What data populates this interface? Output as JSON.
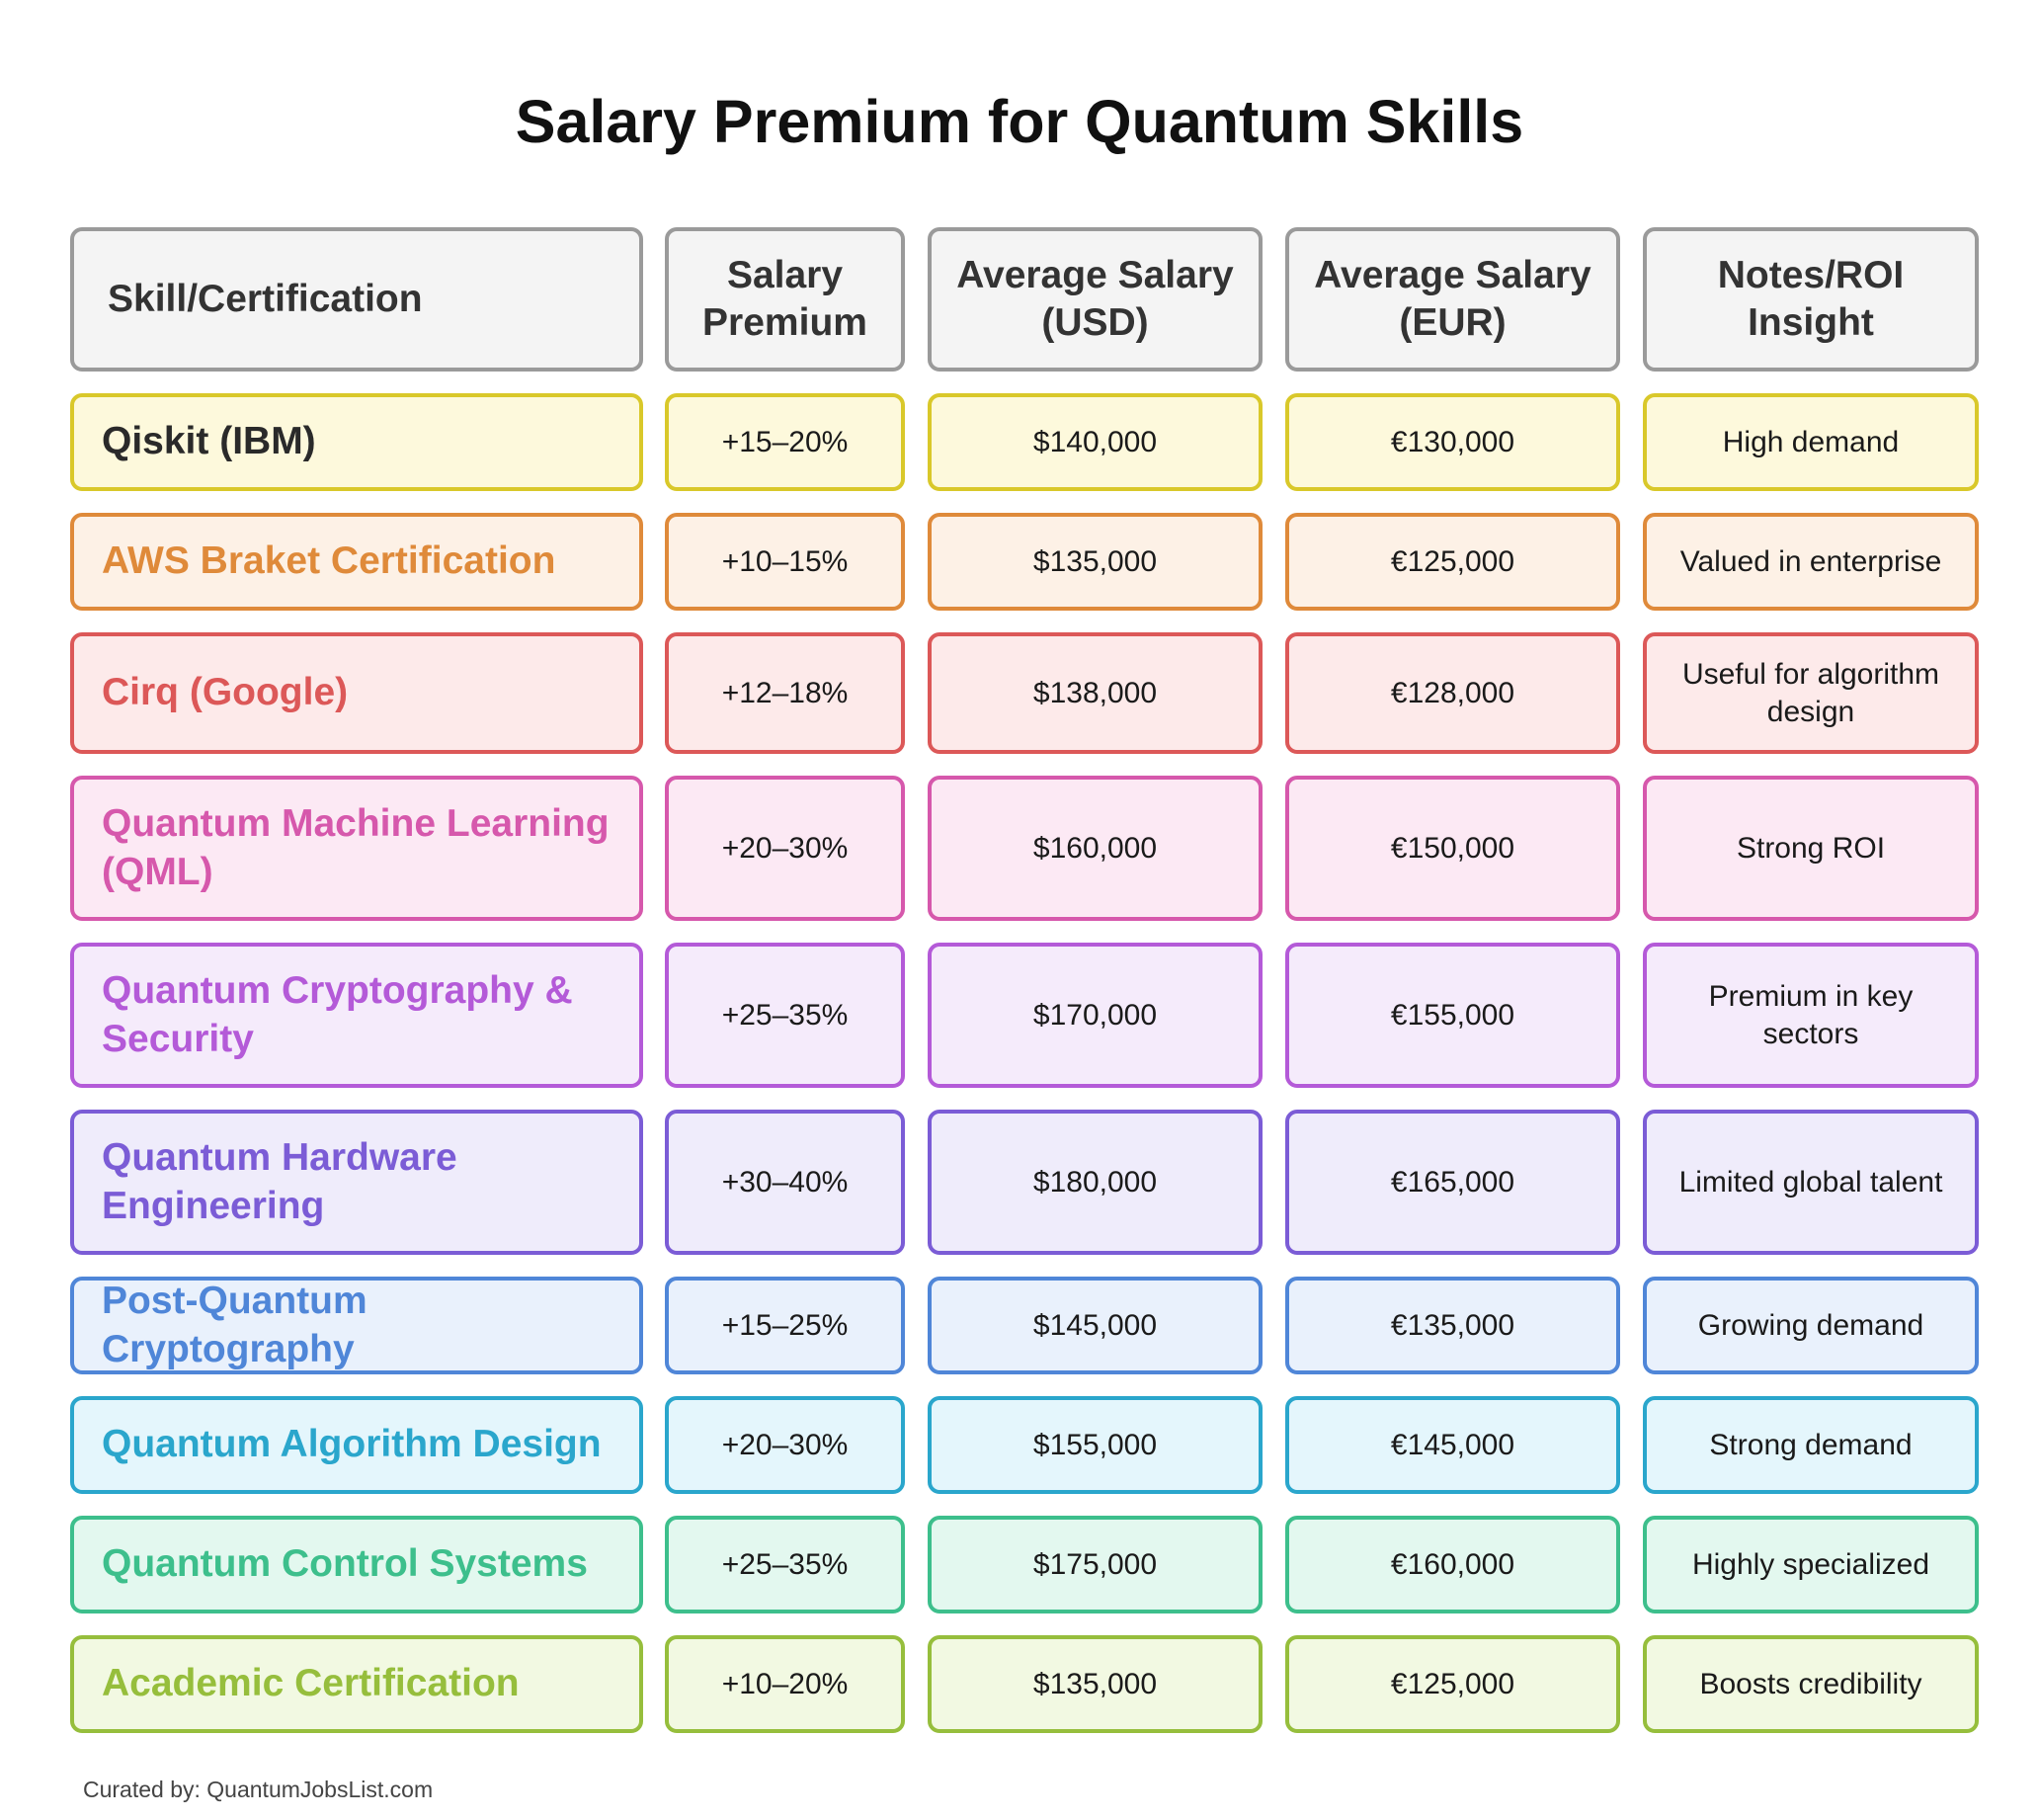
{
  "title": "Salary Premium for Quantum Skills",
  "headers": [
    "Skill/Certification",
    "Salary\nPremium",
    "Average Salary\n(USD)",
    "Average Salary\n(EUR)",
    "Notes/ROI\nInsight"
  ],
  "rows": [
    {
      "skill": "Qiskit (IBM)",
      "premium": "+15–20%",
      "usd": "$140,000",
      "eur": "€130,000",
      "note": "High demand",
      "color": "#d9c82a",
      "bg": "#fdf9dc",
      "text_color": "#2a2a2a"
    },
    {
      "skill": "AWS Braket Certification",
      "premium": "+10–15%",
      "usd": "$135,000",
      "eur": "€125,000",
      "note": "Valued in enterprise",
      "color": "#df8a3a",
      "bg": "#fdf1e6",
      "text_color": "#df8a3a"
    },
    {
      "skill": "Cirq (Google)",
      "premium": "+12–18%",
      "usd": "$138,000",
      "eur": "€128,000",
      "note": "Useful for algorithm design",
      "color": "#dc5858",
      "bg": "#fdeaea",
      "text_color": "#dc5858"
    },
    {
      "skill": "Quantum Machine Learning (QML)",
      "premium": "+20–30%",
      "usd": "$160,000",
      "eur": "€150,000",
      "note": "Strong ROI",
      "color": "#d658ac",
      "bg": "#fce9f4",
      "text_color": "#d658ac"
    },
    {
      "skill": "Quantum Cryptography & Security",
      "premium": "+25–35%",
      "usd": "$170,000",
      "eur": "€155,000",
      "note": "Premium in key sectors",
      "color": "#b45ad8",
      "bg": "#f5ebfb",
      "text_color": "#b45ad8"
    },
    {
      "skill": "Quantum Hardware Engineering",
      "premium": "+30–40%",
      "usd": "$180,000",
      "eur": "€165,000",
      "note": "Limited global talent",
      "color": "#7b5cd6",
      "bg": "#efecfb",
      "text_color": "#7b5cd6"
    },
    {
      "skill": "Post-Quantum Cryptography",
      "premium": "+15–25%",
      "usd": "$145,000",
      "eur": "€135,000",
      "note": "Growing demand",
      "color": "#4f86d8",
      "bg": "#e9f1fc",
      "text_color": "#4f86d8"
    },
    {
      "skill": "Quantum Algorithm Design",
      "premium": "+20–30%",
      "usd": "$155,000",
      "eur": "€145,000",
      "note": "Strong demand",
      "color": "#2aa6cc",
      "bg": "#e4f6fc",
      "text_color": "#2aa6cc"
    },
    {
      "skill": "Quantum Control Systems",
      "premium": "+25–35%",
      "usd": "$175,000",
      "eur": "€160,000",
      "note": "Highly specialized",
      "color": "#3dbf8c",
      "bg": "#e3f8ef",
      "text_color": "#3dbf8c"
    },
    {
      "skill": "Academic Certification",
      "premium": "+10–20%",
      "usd": "$135,000",
      "eur": "€125,000",
      "note": "Boosts credibility",
      "color": "#96be3c",
      "bg": "#f2f9e2",
      "text_color": "#96be3c"
    }
  ],
  "footer": "Curated by: QuantumJobsList.com"
}
